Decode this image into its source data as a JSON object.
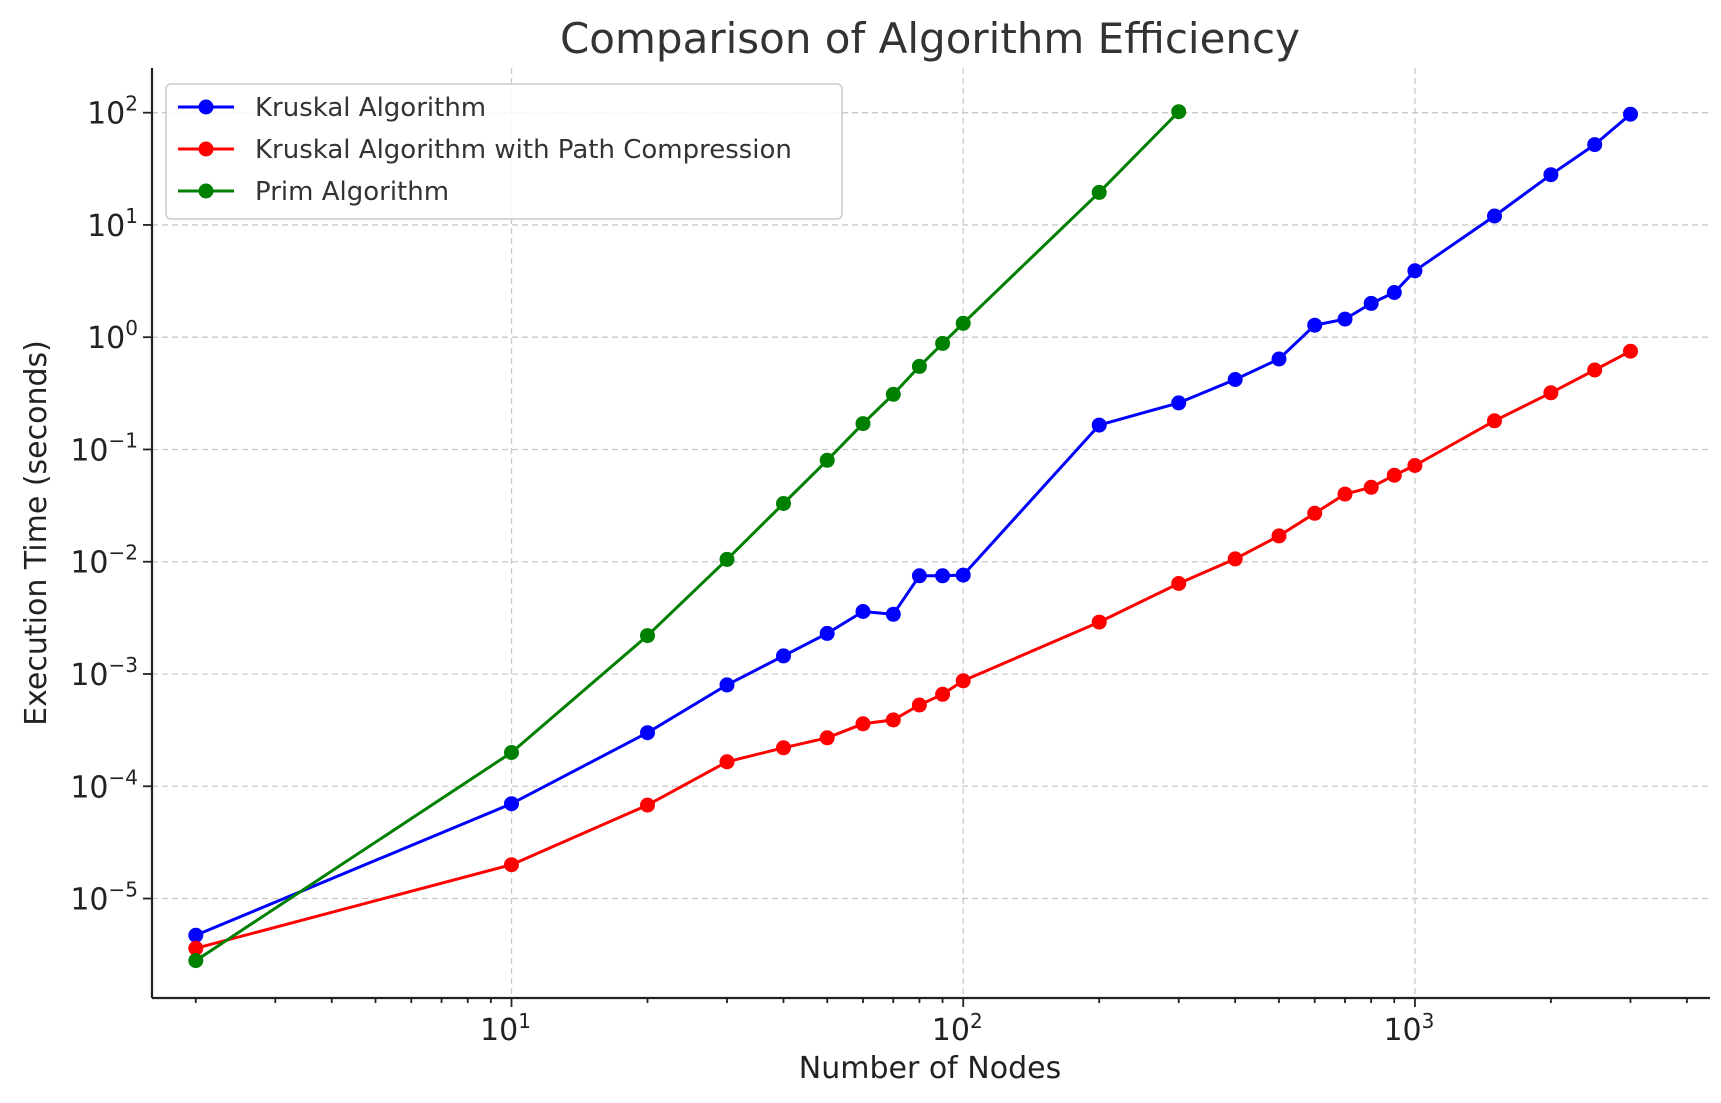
{
  "chart_data": {
    "type": "line",
    "title": "Comparison of Algorithm Efficiency",
    "xlabel": "Number of Nodes",
    "ylabel": "Execution Time (seconds)",
    "xscale": "log",
    "yscale": "log",
    "xlim": [
      1.6,
      4500
    ],
    "ylim": [
      1.3e-06,
      250
    ],
    "grid": true,
    "legend_position": "top-left",
    "x_ticks": [
      {
        "value": 10,
        "base": "10",
        "exp": "1"
      },
      {
        "value": 100,
        "base": "10",
        "exp": "2"
      },
      {
        "value": 1000,
        "base": "10",
        "exp": "3"
      }
    ],
    "y_ticks": [
      {
        "value": 1e-05,
        "base": "10",
        "exp": "−5"
      },
      {
        "value": 0.0001,
        "base": "10",
        "exp": "−4"
      },
      {
        "value": 0.001,
        "base": "10",
        "exp": "−3"
      },
      {
        "value": 0.01,
        "base": "10",
        "exp": "−2"
      },
      {
        "value": 0.1,
        "base": "10",
        "exp": "−1"
      },
      {
        "value": 1,
        "base": "10",
        "exp": "0"
      },
      {
        "value": 10,
        "base": "10",
        "exp": "1"
      },
      {
        "value": 100,
        "base": "10",
        "exp": "2"
      }
    ],
    "series": [
      {
        "name": "Kruskal Algorithm",
        "color": "#0000ff",
        "x": [
          2,
          10,
          20,
          30,
          40,
          50,
          60,
          70,
          80,
          90,
          100,
          200,
          300,
          400,
          500,
          600,
          700,
          800,
          900,
          1000,
          1500,
          2000,
          2500,
          3000
        ],
        "y": [
          4.7e-06,
          7e-05,
          0.0003,
          0.0008,
          0.00145,
          0.0023,
          0.0036,
          0.0034,
          0.0075,
          0.0075,
          0.0076,
          0.165,
          0.26,
          0.42,
          0.64,
          1.28,
          1.45,
          2.0,
          2.5,
          3.9,
          12.0,
          28.0,
          52.0,
          97.0
        ]
      },
      {
        "name": "Kruskal Algorithm with Path Compression",
        "color": "#ff0000",
        "x": [
          2,
          10,
          20,
          30,
          40,
          50,
          60,
          70,
          80,
          90,
          100,
          200,
          300,
          400,
          500,
          600,
          700,
          800,
          900,
          1000,
          1500,
          2000,
          2500,
          3000
        ],
        "y": [
          3.6e-06,
          2e-05,
          6.8e-05,
          0.000165,
          0.00022,
          0.00027,
          0.00036,
          0.00039,
          0.00053,
          0.00066,
          0.00087,
          0.0029,
          0.0064,
          0.0106,
          0.017,
          0.027,
          0.04,
          0.046,
          0.059,
          0.072,
          0.18,
          0.32,
          0.51,
          0.75
        ]
      },
      {
        "name": "Prim Algorithm",
        "color": "#008000",
        "x": [
          2,
          10,
          20,
          30,
          40,
          50,
          60,
          70,
          80,
          90,
          100,
          200,
          300
        ],
        "y": [
          2.8e-06,
          0.0002,
          0.0022,
          0.0105,
          0.033,
          0.08,
          0.17,
          0.31,
          0.55,
          0.88,
          1.33,
          19.5,
          102.0
        ]
      }
    ]
  }
}
